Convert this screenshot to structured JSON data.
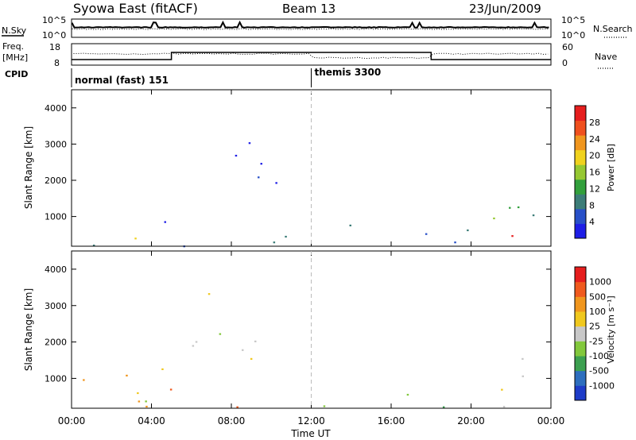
{
  "header": {
    "station": "Syowa East (fitACF)",
    "beam": "Beam 13",
    "date": "23/Jun/2009"
  },
  "strips": {
    "nsky_label": "N.Sky",
    "nsearch_label": "N.Search",
    "noise_ticks": [
      "10^5",
      "10^0"
    ],
    "freq_label_1": "Freq.",
    "freq_label_2": "[MHz]",
    "freq_ticks": [
      "18",
      "8"
    ],
    "nave_label": "Nave",
    "nave_ticks": [
      "60",
      "0"
    ],
    "cpid_label": "CPID",
    "cpid_entries": [
      {
        "name": "normal (fast) 151",
        "start_hour": 0
      },
      {
        "name": "themis 3300",
        "start_hour": 12
      }
    ]
  },
  "colors": {
    "power": [
      "#1e1ee6",
      "#2850c8",
      "#3c7d78",
      "#32a03c",
      "#96c832",
      "#f0d21e",
      "#f0961e",
      "#f0501e",
      "#e61e1e"
    ],
    "velocity": [
      "#1e3cc8",
      "#2d6ebe",
      "#3ca050",
      "#82c83c",
      "#c8c8c8",
      "#f0c81e",
      "#f0961e",
      "#f05a1e",
      "#e61e1e"
    ]
  },
  "chart_data": [
    {
      "type": "heatmap",
      "name": "power",
      "xlabel": "Time UT",
      "ylabel": "Slant Range [km]",
      "x_ticks": [
        "00:00",
        "04:00",
        "08:00",
        "12:00",
        "16:00",
        "20:00",
        "00:00"
      ],
      "xlim_hours": [
        0,
        24
      ],
      "ylim": [
        180,
        4500
      ],
      "y_ticks": [
        1000,
        2000,
        3000,
        4000
      ],
      "colorbar_label": "Power [dB]",
      "colorbar_ticks": [
        "28",
        "24",
        "20",
        "16",
        "12",
        "8",
        "4"
      ],
      "regions": [
        {
          "t": [
            0.0,
            12.0
          ],
          "r": [
            200,
            600
          ],
          "color": 2
        },
        {
          "t": [
            2.5,
            8.0
          ],
          "r": [
            350,
            650
          ],
          "color": 5
        },
        {
          "t": [
            3.0,
            5.5
          ],
          "r": [
            700,
            1400
          ],
          "color": 0
        },
        {
          "t": [
            6.0,
            10.0
          ],
          "r": [
            2300,
            3300
          ],
          "color": 0
        },
        {
          "t": [
            8.5,
            10.5
          ],
          "r": [
            1500,
            2600
          ],
          "color": 0
        },
        {
          "t": [
            12.0,
            20.0
          ],
          "r": [
            200,
            800
          ],
          "color": 1
        },
        {
          "t": [
            21.0,
            24.0
          ],
          "r": [
            200,
            1600
          ],
          "color": 3
        },
        {
          "t": [
            22.0,
            24.0
          ],
          "r": [
            200,
            500
          ],
          "color": 8
        }
      ]
    },
    {
      "type": "heatmap",
      "name": "velocity",
      "xlabel": "Time UT",
      "ylabel": "Slant Range [km]",
      "x_ticks": [
        "00:00",
        "04:00",
        "08:00",
        "12:00",
        "16:00",
        "20:00",
        "00:00"
      ],
      "xlim_hours": [
        0,
        24
      ],
      "ylim": [
        180,
        4500
      ],
      "y_ticks": [
        1000,
        2000,
        3000,
        4000
      ],
      "colorbar_label": "Velocity [m s⁻¹]",
      "colorbar_ticks": [
        "1000",
        "500",
        "100",
        "25",
        "-25",
        "-100",
        "-500",
        "-1000"
      ],
      "regions": [
        {
          "t": [
            0.0,
            9.0
          ],
          "r": [
            200,
            800
          ],
          "color": 6
        },
        {
          "t": [
            0.5,
            5.5
          ],
          "r": [
            700,
            1400
          ],
          "color": 6
        },
        {
          "t": [
            3.0,
            8.0
          ],
          "r": [
            350,
            700
          ],
          "color": 3
        },
        {
          "t": [
            6.0,
            10.5
          ],
          "r": [
            1500,
            3400
          ],
          "color": 4
        },
        {
          "t": [
            12.0,
            19.0
          ],
          "r": [
            200,
            750
          ],
          "color": 3
        },
        {
          "t": [
            21.0,
            24.0
          ],
          "r": [
            200,
            1600
          ],
          "color": 5
        }
      ]
    }
  ]
}
